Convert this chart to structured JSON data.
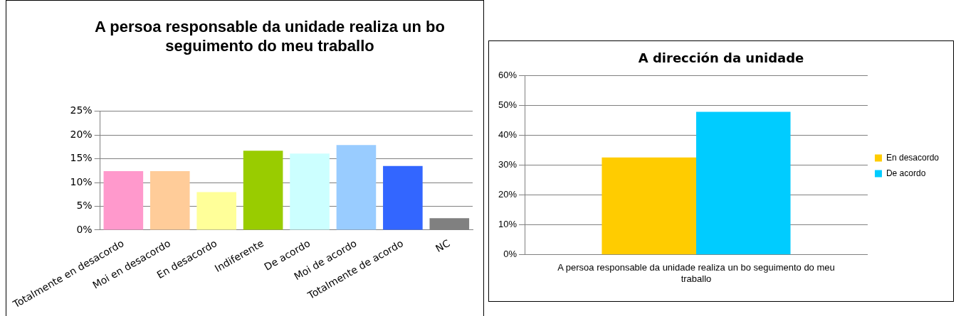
{
  "chart_data": [
    {
      "type": "bar",
      "title": "A persoa responsable da unidade realiza un bo seguimento do meu traballo",
      "categories": [
        "Totalmente en desacordo",
        "Moi en desacordo",
        "En desacordo",
        "Indiferente",
        "De acordo",
        "Moi de acordo",
        "Totalmente de acordo",
        "NC"
      ],
      "values": [
        12.4,
        12.4,
        8.0,
        16.7,
        16.1,
        17.9,
        13.5,
        2.5
      ],
      "colors": [
        "#ff99cc",
        "#ffcc99",
        "#ffff99",
        "#99cc00",
        "#ccffff",
        "#99ccff",
        "#3366ff",
        "#808080"
      ],
      "ylim": [
        0,
        25
      ],
      "yticks": [
        {
          "value": 0,
          "label": "0%"
        },
        {
          "value": 5,
          "label": "5%"
        },
        {
          "value": 10,
          "label": "10%"
        },
        {
          "value": 15,
          "label": "15%"
        },
        {
          "value": 20,
          "label": "20%"
        },
        {
          "value": 25,
          "label": "25%"
        }
      ],
      "grid": "y"
    },
    {
      "type": "bar",
      "title": "A dirección da unidade",
      "categories": [
        "A persoa responsable da unidade realiza un bo seguimento do meu traballo"
      ],
      "series": [
        {
          "name": "En desacordo",
          "color": "#ffcc00",
          "values": [
            32.6
          ]
        },
        {
          "name": "De acordo",
          "color": "#00ccff",
          "values": [
            47.9
          ]
        }
      ],
      "ylim": [
        0,
        60
      ],
      "yticks": [
        {
          "value": 0,
          "label": "0%"
        },
        {
          "value": 10,
          "label": "10%"
        },
        {
          "value": 20,
          "label": "20%"
        },
        {
          "value": 30,
          "label": "30%"
        },
        {
          "value": 40,
          "label": "40%"
        },
        {
          "value": 50,
          "label": "50%"
        },
        {
          "value": 60,
          "label": "60%"
        }
      ],
      "grid": "y",
      "legend": "right"
    }
  ]
}
